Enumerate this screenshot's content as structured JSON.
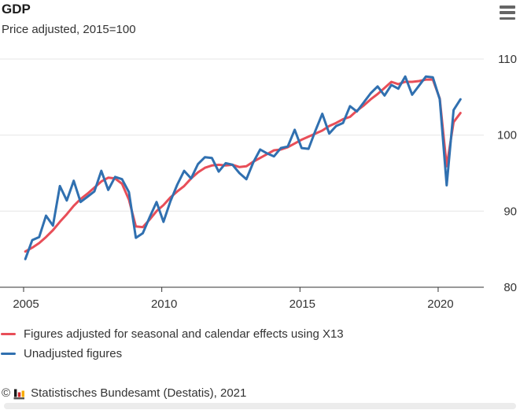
{
  "header": {
    "title": "GDP",
    "subtitle": "Price adjusted, 2015=100"
  },
  "chart_data": {
    "type": "line",
    "title": "GDP",
    "subtitle": "Price adjusted, 2015=100",
    "frequency": "quarterly",
    "x_start": "2005-Q1",
    "x_end": "2020-Q4",
    "ylim": [
      80,
      110
    ],
    "grid_on": true,
    "grid_color": "#e6e6e6",
    "axis_color": "#333333",
    "legend_position": "bottom-left",
    "y_ticks": [
      {
        "value": 110,
        "label": "110"
      },
      {
        "value": 100,
        "label": "100"
      },
      {
        "value": 90,
        "label": "90"
      },
      {
        "value": 80,
        "label": "80"
      }
    ],
    "x_ticks": [
      {
        "year": 2005,
        "label": "2005"
      },
      {
        "year": 2010,
        "label": "2010"
      },
      {
        "year": 2015,
        "label": "2015"
      },
      {
        "year": 2020,
        "label": "2020"
      }
    ],
    "series": [
      {
        "name": "Figures adjusted for seasonal and calendar effects using X13",
        "color": "#e84e58",
        "values": [
          84.7,
          85.2,
          85.8,
          86.6,
          87.5,
          88.6,
          89.6,
          90.7,
          91.6,
          92.3,
          93.1,
          93.9,
          94.4,
          94.3,
          93.6,
          91.5,
          88.0,
          87.9,
          88.9,
          90.0,
          90.8,
          91.8,
          92.6,
          93.3,
          94.3,
          95.1,
          95.7,
          96.0,
          96.1,
          96.0,
          96.1,
          95.8,
          95.9,
          96.5,
          97.0,
          97.5,
          98.0,
          98.1,
          98.4,
          98.9,
          99.4,
          99.8,
          100.2,
          100.6,
          101.2,
          101.6,
          102.1,
          102.4,
          103.2,
          103.9,
          104.7,
          105.4,
          106.2,
          107.0,
          106.7,
          107.0,
          107.0,
          107.1,
          107.3,
          107.3,
          104.8,
          95.9,
          101.7,
          102.9
        ]
      },
      {
        "name": "Unadjusted figures",
        "color": "#3070b0",
        "values": [
          83.7,
          86.2,
          86.6,
          89.4,
          88.1,
          93.3,
          91.4,
          94.0,
          91.2,
          91.9,
          92.6,
          95.3,
          92.8,
          94.5,
          94.2,
          92.5,
          86.5,
          87.1,
          89.2,
          91.2,
          88.6,
          91.3,
          93.5,
          95.3,
          94.3,
          96.2,
          97.1,
          97.0,
          95.2,
          96.3,
          96.1,
          95.0,
          94.2,
          96.4,
          98.1,
          97.6,
          97.2,
          98.3,
          98.5,
          100.7,
          98.3,
          98.2,
          100.6,
          102.8,
          100.2,
          101.2,
          101.6,
          103.8,
          103.1,
          104.3,
          105.5,
          106.4,
          105.2,
          106.6,
          106.1,
          107.7,
          105.3,
          106.5,
          107.7,
          107.6,
          104.7,
          93.4,
          103.3,
          104.7
        ]
      }
    ]
  },
  "footer": {
    "copyright": "©",
    "text": "Statistisches Bundesamt (Destatis), 2021"
  }
}
